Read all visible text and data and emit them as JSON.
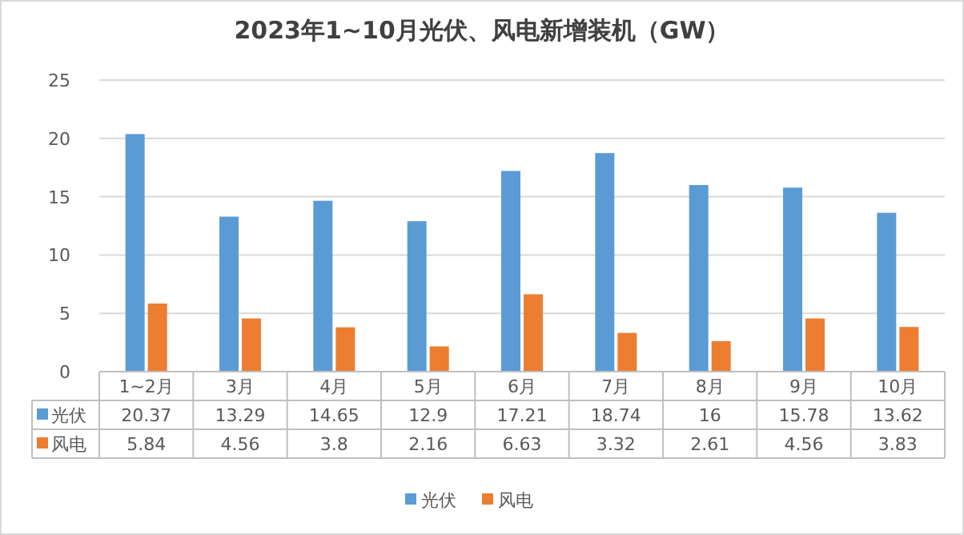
{
  "chart_data": {
    "type": "bar",
    "title": "2023年1~10月光伏、风电新增装机（GW）",
    "categories": [
      "1~2月",
      "3月",
      "4月",
      "5月",
      "6月",
      "7月",
      "8月",
      "9月",
      "10月"
    ],
    "series": [
      {
        "name": "光伏",
        "color": "#5b9bd5",
        "values": [
          20.37,
          13.29,
          14.65,
          12.9,
          17.21,
          18.74,
          16,
          15.78,
          13.62
        ]
      },
      {
        "name": "风电",
        "color": "#ed7d31",
        "values": [
          5.84,
          4.56,
          3.8,
          2.16,
          6.63,
          3.32,
          2.61,
          4.56,
          3.83
        ]
      }
    ],
    "ylim": [
      0,
      25
    ],
    "yticks": [
      0,
      5,
      10,
      15,
      20,
      25
    ],
    "grid": "y",
    "legend": "bottom",
    "data_labels": true
  }
}
